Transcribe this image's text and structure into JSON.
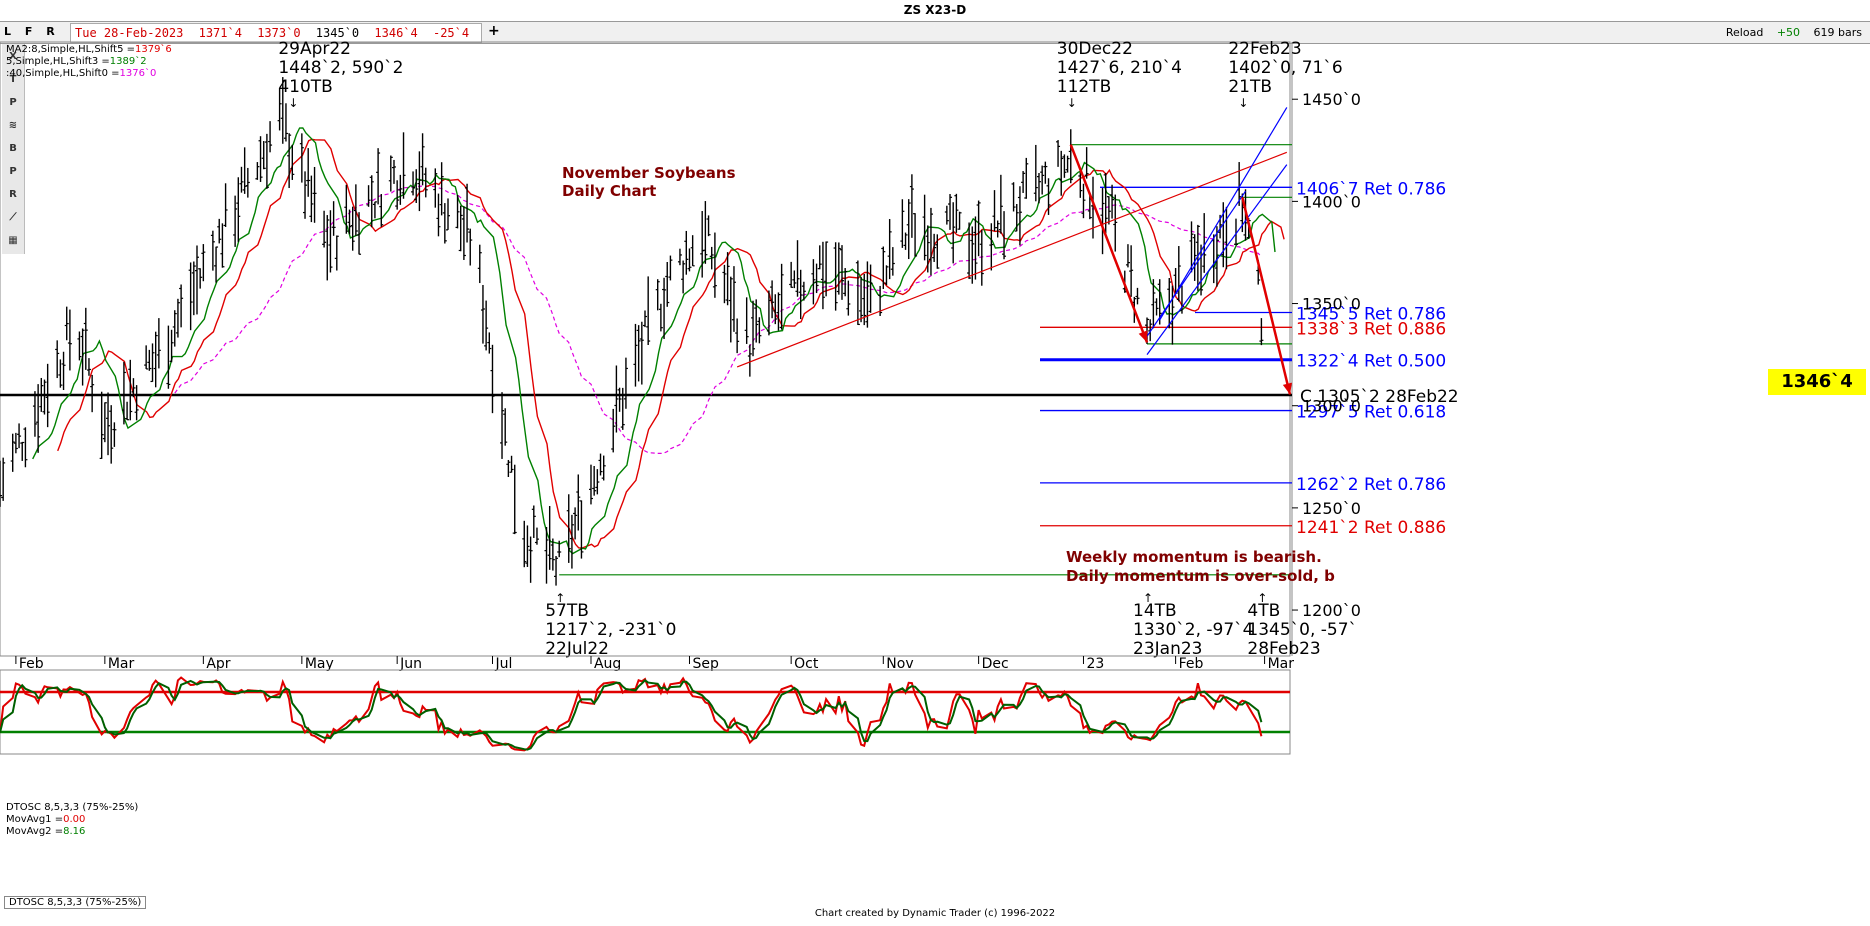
{
  "window": {
    "title": "ZS X23-D",
    "tabs": [
      "L",
      "F",
      "R"
    ],
    "date_label": "Tue 28-Feb-2023",
    "ohlc": [
      "1371`4",
      "1373`0",
      "1345`0",
      "1346`4",
      "-25`4"
    ],
    "plus_label": "+",
    "reload_label": "Reload",
    "reload_offset": "+50",
    "bars_label": "619 bars",
    "footer": "Chart created by Dynamic Trader  (c) 1996-2022"
  },
  "toolbar": {
    "tools": [
      {
        "name": "close-x-icon",
        "glyph": "X"
      },
      {
        "name": "time-projection-icon",
        "glyph": "T"
      },
      {
        "name": "price-retracement-icon",
        "glyph": "P"
      },
      {
        "name": "pattern-icon",
        "glyph": "≋"
      },
      {
        "name": "b-tool-icon",
        "glyph": "B"
      },
      {
        "name": "p-tool-icon",
        "glyph": "P"
      },
      {
        "name": "r-tool-icon",
        "glyph": "R"
      },
      {
        "name": "fan-icon",
        "glyph": "⟋"
      },
      {
        "name": "grid-icon",
        "glyph": "▦"
      }
    ]
  },
  "legend": {
    "ma1": {
      "label": "MA2:8,Simple,HL,Shift5 =",
      "value": "1379`6",
      "color": "#e00000"
    },
    "ma2": {
      "label": "5,Simple,HL,Shift3 =",
      "value": "1389`2",
      "color": "#008000"
    },
    "ma3": {
      "label": ":40,Simple,HL,Shift0 =",
      "value": "1376`0",
      "color": "#e000e0"
    }
  },
  "colors": {
    "bars": "#000000",
    "ma_fast": "#008000",
    "ma_mid": "#e00000",
    "ma_slow": "#e000e0",
    "retrace_blue": "#0000ff",
    "retrace_red": "#e00000",
    "close_line": "#000000",
    "swing_green": "#008000",
    "annotation_text": "#800000",
    "price_label_bg": "#ffff00"
  },
  "price_label": "1346`4",
  "chart_data": {
    "type": "ohlc",
    "title": "November Soybeans",
    "subtitle": "Daily Chart",
    "y_ticks": [
      "1450`0",
      "1400`0",
      "1350`0",
      "1300`0",
      "1250`0",
      "1200`0"
    ],
    "y_tick_values": [
      1450,
      1400,
      1350,
      1300,
      1250,
      1200
    ],
    "ylim": [
      1178,
      1478
    ],
    "x_ticks": [
      "Feb",
      "Mar",
      "Apr",
      "May",
      "Jun",
      "Jul",
      "Aug",
      "Sep",
      "Oct",
      "Nov",
      "Dec",
      "23",
      "Feb",
      "Mar"
    ],
    "x_tick_dates": [
      "2022-02-01",
      "2022-03-01",
      "2022-04-01",
      "2022-05-02",
      "2022-06-01",
      "2022-07-01",
      "2022-08-01",
      "2022-09-01",
      "2022-10-03",
      "2022-11-01",
      "2022-12-01",
      "2023-01-03",
      "2023-02-01",
      "2023-03-01"
    ],
    "date_range": [
      "2022-01-27",
      "2023-03-09"
    ],
    "anchor_points": [
      {
        "date": "2022-01-27",
        "price": 1262
      },
      {
        "date": "2022-02-20",
        "price": 1340
      },
      {
        "date": "2022-03-01",
        "price": 1290
      },
      {
        "date": "2022-03-20",
        "price": 1330
      },
      {
        "date": "2022-04-25",
        "price": 1440
      },
      {
        "date": "2022-05-10",
        "price": 1380
      },
      {
        "date": "2022-06-05",
        "price": 1420
      },
      {
        "date": "2022-06-25",
        "price": 1380
      },
      {
        "date": "2022-07-10",
        "price": 1240
      },
      {
        "date": "2022-07-22",
        "price": 1220
      },
      {
        "date": "2022-08-10",
        "price": 1300
      },
      {
        "date": "2022-08-25",
        "price": 1360
      },
      {
        "date": "2022-09-05",
        "price": 1385
      },
      {
        "date": "2022-09-20",
        "price": 1330
      },
      {
        "date": "2022-10-12",
        "price": 1370
      },
      {
        "date": "2022-10-28",
        "price": 1350
      },
      {
        "date": "2022-11-10",
        "price": 1390
      },
      {
        "date": "2022-12-01",
        "price": 1380
      },
      {
        "date": "2022-12-30",
        "price": 1420
      },
      {
        "date": "2023-01-12",
        "price": 1390
      },
      {
        "date": "2023-01-23",
        "price": 1335
      },
      {
        "date": "2023-02-05",
        "price": 1365
      },
      {
        "date": "2023-02-22",
        "price": 1400
      },
      {
        "date": "2023-02-28",
        "price": 1346
      }
    ],
    "swing_annotations": [
      {
        "date": "2022-04-29",
        "lines": [
          "29Apr22",
          "1448`2, 590`2",
          "410TB"
        ],
        "position": "above"
      },
      {
        "date": "2022-12-30",
        "lines": [
          "30Dec22",
          "1427`6, 210`4",
          "112TB"
        ],
        "position": "above"
      },
      {
        "date": "2023-02-22",
        "lines": [
          "22Feb23",
          "1402`0, 71`6",
          "21TB"
        ],
        "position": "above"
      },
      {
        "date": "2022-07-22",
        "lines": [
          "57TB",
          "1217`2, -231`0",
          "22Jul22"
        ],
        "position": "below"
      },
      {
        "date": "2023-01-23",
        "lines": [
          "14TB",
          "1330`2, -97`4",
          "23Jan23"
        ],
        "position": "below"
      },
      {
        "date": "2023-02-28",
        "lines": [
          "4TB",
          "1345`0, -57`",
          "28Feb23"
        ],
        "position": "below"
      }
    ],
    "retracement_levels": [
      {
        "price": 1406.875,
        "label": "1406`7 Ret 0.786",
        "color": "blue"
      },
      {
        "price": 1345.625,
        "label": "1345`5 Ret 0.786",
        "color": "blue"
      },
      {
        "price": 1338.375,
        "label": "1338`3 Ret 0.886",
        "color": "red"
      },
      {
        "price": 1322.5,
        "label": "1322`4 Ret 0.500",
        "color": "blue"
      },
      {
        "price": 1297.625,
        "label": "1297`5 Ret 0.618",
        "color": "blue"
      },
      {
        "price": 1262.25,
        "label": "1262`2 Ret 0.786",
        "color": "blue"
      },
      {
        "price": 1241.25,
        "label": "1241`2 Ret 0.886",
        "color": "red"
      }
    ],
    "close_level": {
      "price": 1305.25,
      "label": "C 1305`2 28Feb22"
    },
    "swing_levels": [
      {
        "price": 1427.75,
        "from": "2022-12-30"
      },
      {
        "price": 1402.0,
        "from": "2023-02-22"
      },
      {
        "price": 1330.25,
        "from": "2023-01-23"
      },
      {
        "price": 1217.25,
        "from": "2022-07-22"
      }
    ],
    "annotation_text": [
      "Weekly momentum is bearish.",
      "Daily momentum is over-sold, b"
    ],
    "oscillator": {
      "name": "DTOSC 8,5,3,3 (75%-25%)",
      "movavg1_label": "MovAvg1 =",
      "movavg1_value": "0.00",
      "movavg2_label": "MovAvg2 =",
      "movavg2_value": "8.16",
      "overbought": 75,
      "oversold": 25,
      "ylim": [
        0,
        100
      ]
    }
  }
}
